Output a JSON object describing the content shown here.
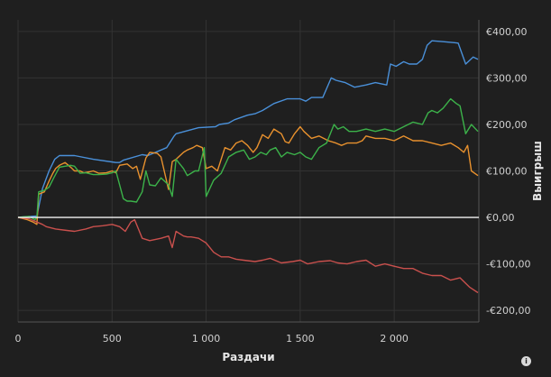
{
  "chart_data": {
    "type": "line",
    "title": "",
    "xlabel": "Раздачи",
    "ylabel": "Выигрыш",
    "xlim": [
      0,
      2450
    ],
    "ylim": [
      -225,
      425
    ],
    "x_ticks": [
      0,
      500,
      1000,
      1500,
      2000
    ],
    "x_tick_labels": [
      "0",
      "500",
      "1 000",
      "1 500",
      "2 000"
    ],
    "y_ticks": [
      400,
      300,
      200,
      100,
      0,
      -100,
      -200
    ],
    "y_tick_labels": [
      "€400,00",
      "€300,00",
      "€200,00",
      "€100,00",
      "€0,00",
      "-€100,00",
      "-€200,00"
    ],
    "grid": true,
    "legend": "none",
    "zero_line": 0,
    "series": [
      {
        "color": "#4a90d9",
        "x": [
          0,
          100,
          130,
          165,
          195,
          220,
          300,
          400,
          520,
          540,
          560,
          660,
          690,
          790,
          830,
          840,
          960,
          1050,
          1070,
          1120,
          1150,
          1220,
          1260,
          1300,
          1360,
          1430,
          1500,
          1530,
          1560,
          1620,
          1665,
          1690,
          1740,
          1790,
          1850,
          1900,
          1960,
          1980,
          2010,
          2050,
          2080,
          2120,
          2150,
          2175,
          2200,
          2260,
          2320,
          2340,
          2380,
          2420,
          2445
        ],
        "y": [
          0,
          3,
          62,
          100,
          125,
          133,
          133,
          125,
          118,
          118,
          123,
          135,
          133,
          150,
          175,
          180,
          193,
          195,
          200,
          203,
          210,
          220,
          223,
          230,
          245,
          255,
          255,
          250,
          258,
          258,
          300,
          295,
          290,
          280,
          285,
          290,
          285,
          330,
          325,
          335,
          330,
          330,
          340,
          370,
          380,
          378,
          376,
          375,
          330,
          345,
          340
        ]
      },
      {
        "color": "#e8912e",
        "x": [
          0,
          50,
          80,
          100,
          110,
          140,
          165,
          185,
          200,
          220,
          250,
          280,
          300,
          330,
          350,
          380,
          400,
          430,
          470,
          500,
          520,
          540,
          580,
          610,
          630,
          650,
          680,
          700,
          740,
          760,
          800,
          820,
          840,
          880,
          900,
          930,
          950,
          980,
          1000,
          1030,
          1060,
          1100,
          1130,
          1160,
          1190,
          1220,
          1250,
          1270,
          1300,
          1330,
          1360,
          1400,
          1420,
          1440,
          1470,
          1500,
          1520,
          1560,
          1600,
          1650,
          1690,
          1720,
          1750,
          1800,
          1830,
          1850,
          1900,
          1950,
          2000,
          2050,
          2100,
          2150,
          2200,
          2250,
          2300,
          2340,
          2370,
          2390,
          2410,
          2445
        ],
        "y": [
          0,
          -5,
          -10,
          -15,
          50,
          55,
          78,
          95,
          105,
          112,
          118,
          108,
          100,
          100,
          96,
          98,
          100,
          95,
          96,
          100,
          96,
          112,
          115,
          105,
          110,
          82,
          128,
          140,
          138,
          130,
          60,
          120,
          125,
          140,
          145,
          150,
          155,
          150,
          105,
          110,
          100,
          150,
          145,
          160,
          165,
          155,
          140,
          150,
          178,
          170,
          190,
          180,
          163,
          160,
          180,
          195,
          185,
          170,
          175,
          165,
          160,
          155,
          160,
          160,
          165,
          175,
          170,
          170,
          165,
          175,
          165,
          165,
          160,
          155,
          160,
          150,
          140,
          155,
          100,
          90
        ]
      },
      {
        "color": "#3cb24a",
        "x": [
          0,
          60,
          90,
          100,
          110,
          140,
          165,
          190,
          220,
          250,
          280,
          300,
          330,
          360,
          400,
          430,
          470,
          500,
          520,
          560,
          580,
          600,
          630,
          660,
          680,
          700,
          730,
          760,
          800,
          820,
          840,
          880,
          900,
          920,
          940,
          960,
          990,
          1000,
          1040,
          1080,
          1120,
          1160,
          1200,
          1230,
          1260,
          1290,
          1320,
          1340,
          1370,
          1400,
          1430,
          1470,
          1500,
          1530,
          1560,
          1600,
          1640,
          1680,
          1700,
          1730,
          1760,
          1800,
          1850,
          1900,
          1950,
          2000,
          2050,
          2100,
          2150,
          2180,
          2200,
          2230,
          2260,
          2300,
          2330,
          2350,
          2380,
          2410,
          2445
        ],
        "y": [
          0,
          2,
          -5,
          0,
          55,
          58,
          65,
          85,
          108,
          110,
          112,
          110,
          95,
          96,
          92,
          92,
          93,
          96,
          100,
          40,
          35,
          35,
          33,
          55,
          100,
          70,
          68,
          85,
          70,
          45,
          125,
          105,
          90,
          95,
          100,
          100,
          150,
          45,
          80,
          95,
          130,
          140,
          145,
          125,
          130,
          140,
          135,
          145,
          150,
          130,
          140,
          135,
          140,
          130,
          125,
          150,
          160,
          200,
          190,
          195,
          185,
          185,
          190,
          185,
          190,
          185,
          195,
          205,
          200,
          225,
          230,
          225,
          235,
          255,
          245,
          240,
          180,
          200,
          185
        ]
      },
      {
        "color": "#c9504d",
        "x": [
          0,
          60,
          100,
          130,
          150,
          200,
          260,
          300,
          360,
          400,
          450,
          500,
          540,
          570,
          600,
          620,
          640,
          660,
          700,
          760,
          800,
          820,
          840,
          880,
          900,
          920,
          960,
          1000,
          1040,
          1060,
          1080,
          1120,
          1160,
          1200,
          1260,
          1300,
          1340,
          1400,
          1460,
          1500,
          1540,
          1600,
          1660,
          1700,
          1750,
          1800,
          1850,
          1900,
          1950,
          2000,
          2050,
          2100,
          2150,
          2200,
          2250,
          2300,
          2350,
          2400,
          2445
        ],
        "y": [
          0,
          -3,
          -10,
          -15,
          -20,
          -25,
          -28,
          -30,
          -25,
          -20,
          -18,
          -15,
          -20,
          -30,
          -10,
          -5,
          -25,
          -45,
          -50,
          -45,
          -40,
          -65,
          -30,
          -40,
          -42,
          -42,
          -45,
          -55,
          -75,
          -80,
          -85,
          -85,
          -90,
          -92,
          -95,
          -92,
          -88,
          -98,
          -95,
          -92,
          -100,
          -95,
          -93,
          -98,
          -100,
          -95,
          -92,
          -105,
          -100,
          -105,
          -110,
          -110,
          -120,
          -125,
          -125,
          -135,
          -130,
          -150,
          -162
        ]
      }
    ]
  }
}
